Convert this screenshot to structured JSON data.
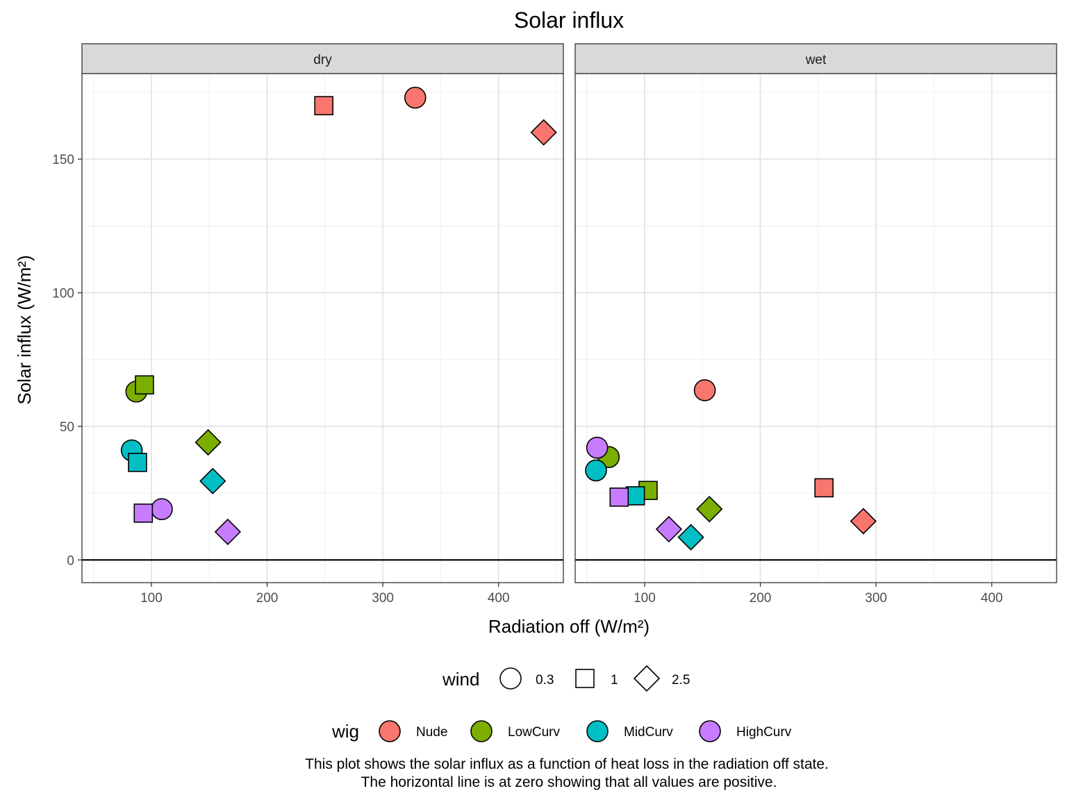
{
  "chart_data": {
    "type": "scatter",
    "title": "Solar influx",
    "xlabel": "Radiation off (W/m²)",
    "ylabel": "Solar influx (W/m²)",
    "xlim": [
      40,
      456
    ],
    "ylim": [
      -8.5,
      182
    ],
    "x_ticks": [
      100,
      200,
      300,
      400
    ],
    "y_ticks": [
      0,
      50,
      100,
      150
    ],
    "grid": true,
    "hline": 0,
    "facets": [
      "dry",
      "wet"
    ],
    "legend_position": "bottom",
    "legends": {
      "wind": {
        "title": "wind",
        "items": [
          {
            "label": "0.3",
            "shape": "circle"
          },
          {
            "label": "1",
            "shape": "square"
          },
          {
            "label": "2.5",
            "shape": "diamond"
          }
        ]
      },
      "wig": {
        "title": "wig",
        "items": [
          {
            "label": "Nude",
            "color": "#F8766D"
          },
          {
            "label": "LowCurv",
            "color": "#7CAE00"
          },
          {
            "label": "MidCurv",
            "color": "#00BFC4"
          },
          {
            "label": "HighCurv",
            "color": "#C77CFF"
          }
        ]
      }
    },
    "points": [
      {
        "facet": "dry",
        "wig": "Nude",
        "wind": "0.3",
        "x": 328,
        "y": 173
      },
      {
        "facet": "dry",
        "wig": "Nude",
        "wind": "1",
        "x": 249,
        "y": 170
      },
      {
        "facet": "dry",
        "wig": "Nude",
        "wind": "2.5",
        "x": 439,
        "y": 160
      },
      {
        "facet": "dry",
        "wig": "LowCurv",
        "wind": "0.3",
        "x": 87,
        "y": 63
      },
      {
        "facet": "dry",
        "wig": "LowCurv",
        "wind": "1",
        "x": 94,
        "y": 65.5
      },
      {
        "facet": "dry",
        "wig": "LowCurv",
        "wind": "2.5",
        "x": 149,
        "y": 44
      },
      {
        "facet": "dry",
        "wig": "MidCurv",
        "wind": "0.3",
        "x": 83,
        "y": 41
      },
      {
        "facet": "dry",
        "wig": "MidCurv",
        "wind": "1",
        "x": 88,
        "y": 36.5
      },
      {
        "facet": "dry",
        "wig": "MidCurv",
        "wind": "2.5",
        "x": 153,
        "y": 29.5
      },
      {
        "facet": "dry",
        "wig": "HighCurv",
        "wind": "0.3",
        "x": 109,
        "y": 19
      },
      {
        "facet": "dry",
        "wig": "HighCurv",
        "wind": "1",
        "x": 93,
        "y": 17.5
      },
      {
        "facet": "dry",
        "wig": "HighCurv",
        "wind": "2.5",
        "x": 166,
        "y": 10.5
      },
      {
        "facet": "wet",
        "wig": "Nude",
        "wind": "0.3",
        "x": 152,
        "y": 63.5
      },
      {
        "facet": "wet",
        "wig": "Nude",
        "wind": "1",
        "x": 255,
        "y": 27
      },
      {
        "facet": "wet",
        "wig": "Nude",
        "wind": "2.5",
        "x": 289,
        "y": 14.5
      },
      {
        "facet": "wet",
        "wig": "LowCurv",
        "wind": "0.3",
        "x": 69,
        "y": 38.5
      },
      {
        "facet": "wet",
        "wig": "LowCurv",
        "wind": "1",
        "x": 103,
        "y": 26
      },
      {
        "facet": "wet",
        "wig": "LowCurv",
        "wind": "2.5",
        "x": 156,
        "y": 19
      },
      {
        "facet": "wet",
        "wig": "MidCurv",
        "wind": "0.3",
        "x": 58,
        "y": 33.5
      },
      {
        "facet": "wet",
        "wig": "MidCurv",
        "wind": "1",
        "x": 92,
        "y": 24
      },
      {
        "facet": "wet",
        "wig": "MidCurv",
        "wind": "2.5",
        "x": 140,
        "y": 8.5
      },
      {
        "facet": "wet",
        "wig": "HighCurv",
        "wind": "0.3",
        "x": 59,
        "y": 42
      },
      {
        "facet": "wet",
        "wig": "HighCurv",
        "wind": "1",
        "x": 78,
        "y": 23.5
      },
      {
        "facet": "wet",
        "wig": "HighCurv",
        "wind": "2.5",
        "x": 121,
        "y": 11.5
      }
    ],
    "caption": [
      "This plot shows the solar influx as a function of heat loss in the radiation off state.",
      "The horizontal line is at zero showing that all values are positive."
    ]
  }
}
